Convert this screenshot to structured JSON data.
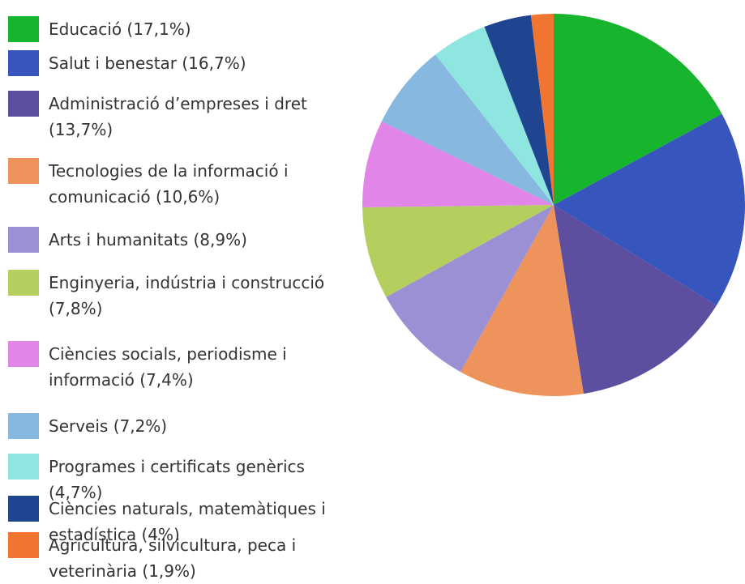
{
  "chart_data": {
    "type": "pie",
    "categories": [
      "Educació (17,1%)",
      "Salut i benestar (16,7%)",
      "Administració d’empreses i dret (13,7%)",
      "Tecnologies de la informació i comunicació (10,6%)",
      "Arts i humanitats (8,9%)",
      "Enginyeria, indústria i construcció (7,8%)",
      "Ciències socials, periodisme i informació (7,4%)",
      "Serveis (7,2%)",
      "Programes i certificats genèrics (4,7%)",
      "Ciències naturals, matemàtiques i estadística (4%)",
      "Agricultura, silvicultura, peca i veterinària (1,9%)"
    ],
    "values": [
      17.1,
      16.7,
      13.7,
      10.6,
      8.9,
      7.8,
      7.4,
      7.2,
      4.7,
      4,
      1.9
    ],
    "colors": [
      "#17b52d",
      "#3656bd",
      "#5d4e9f",
      "#ef935c",
      "#9b90d4",
      "#b5cf5f",
      "#e185e8",
      "#87b9e0",
      "#8fe6e1",
      "#1f4590",
      "#ef7530"
    ]
  }
}
